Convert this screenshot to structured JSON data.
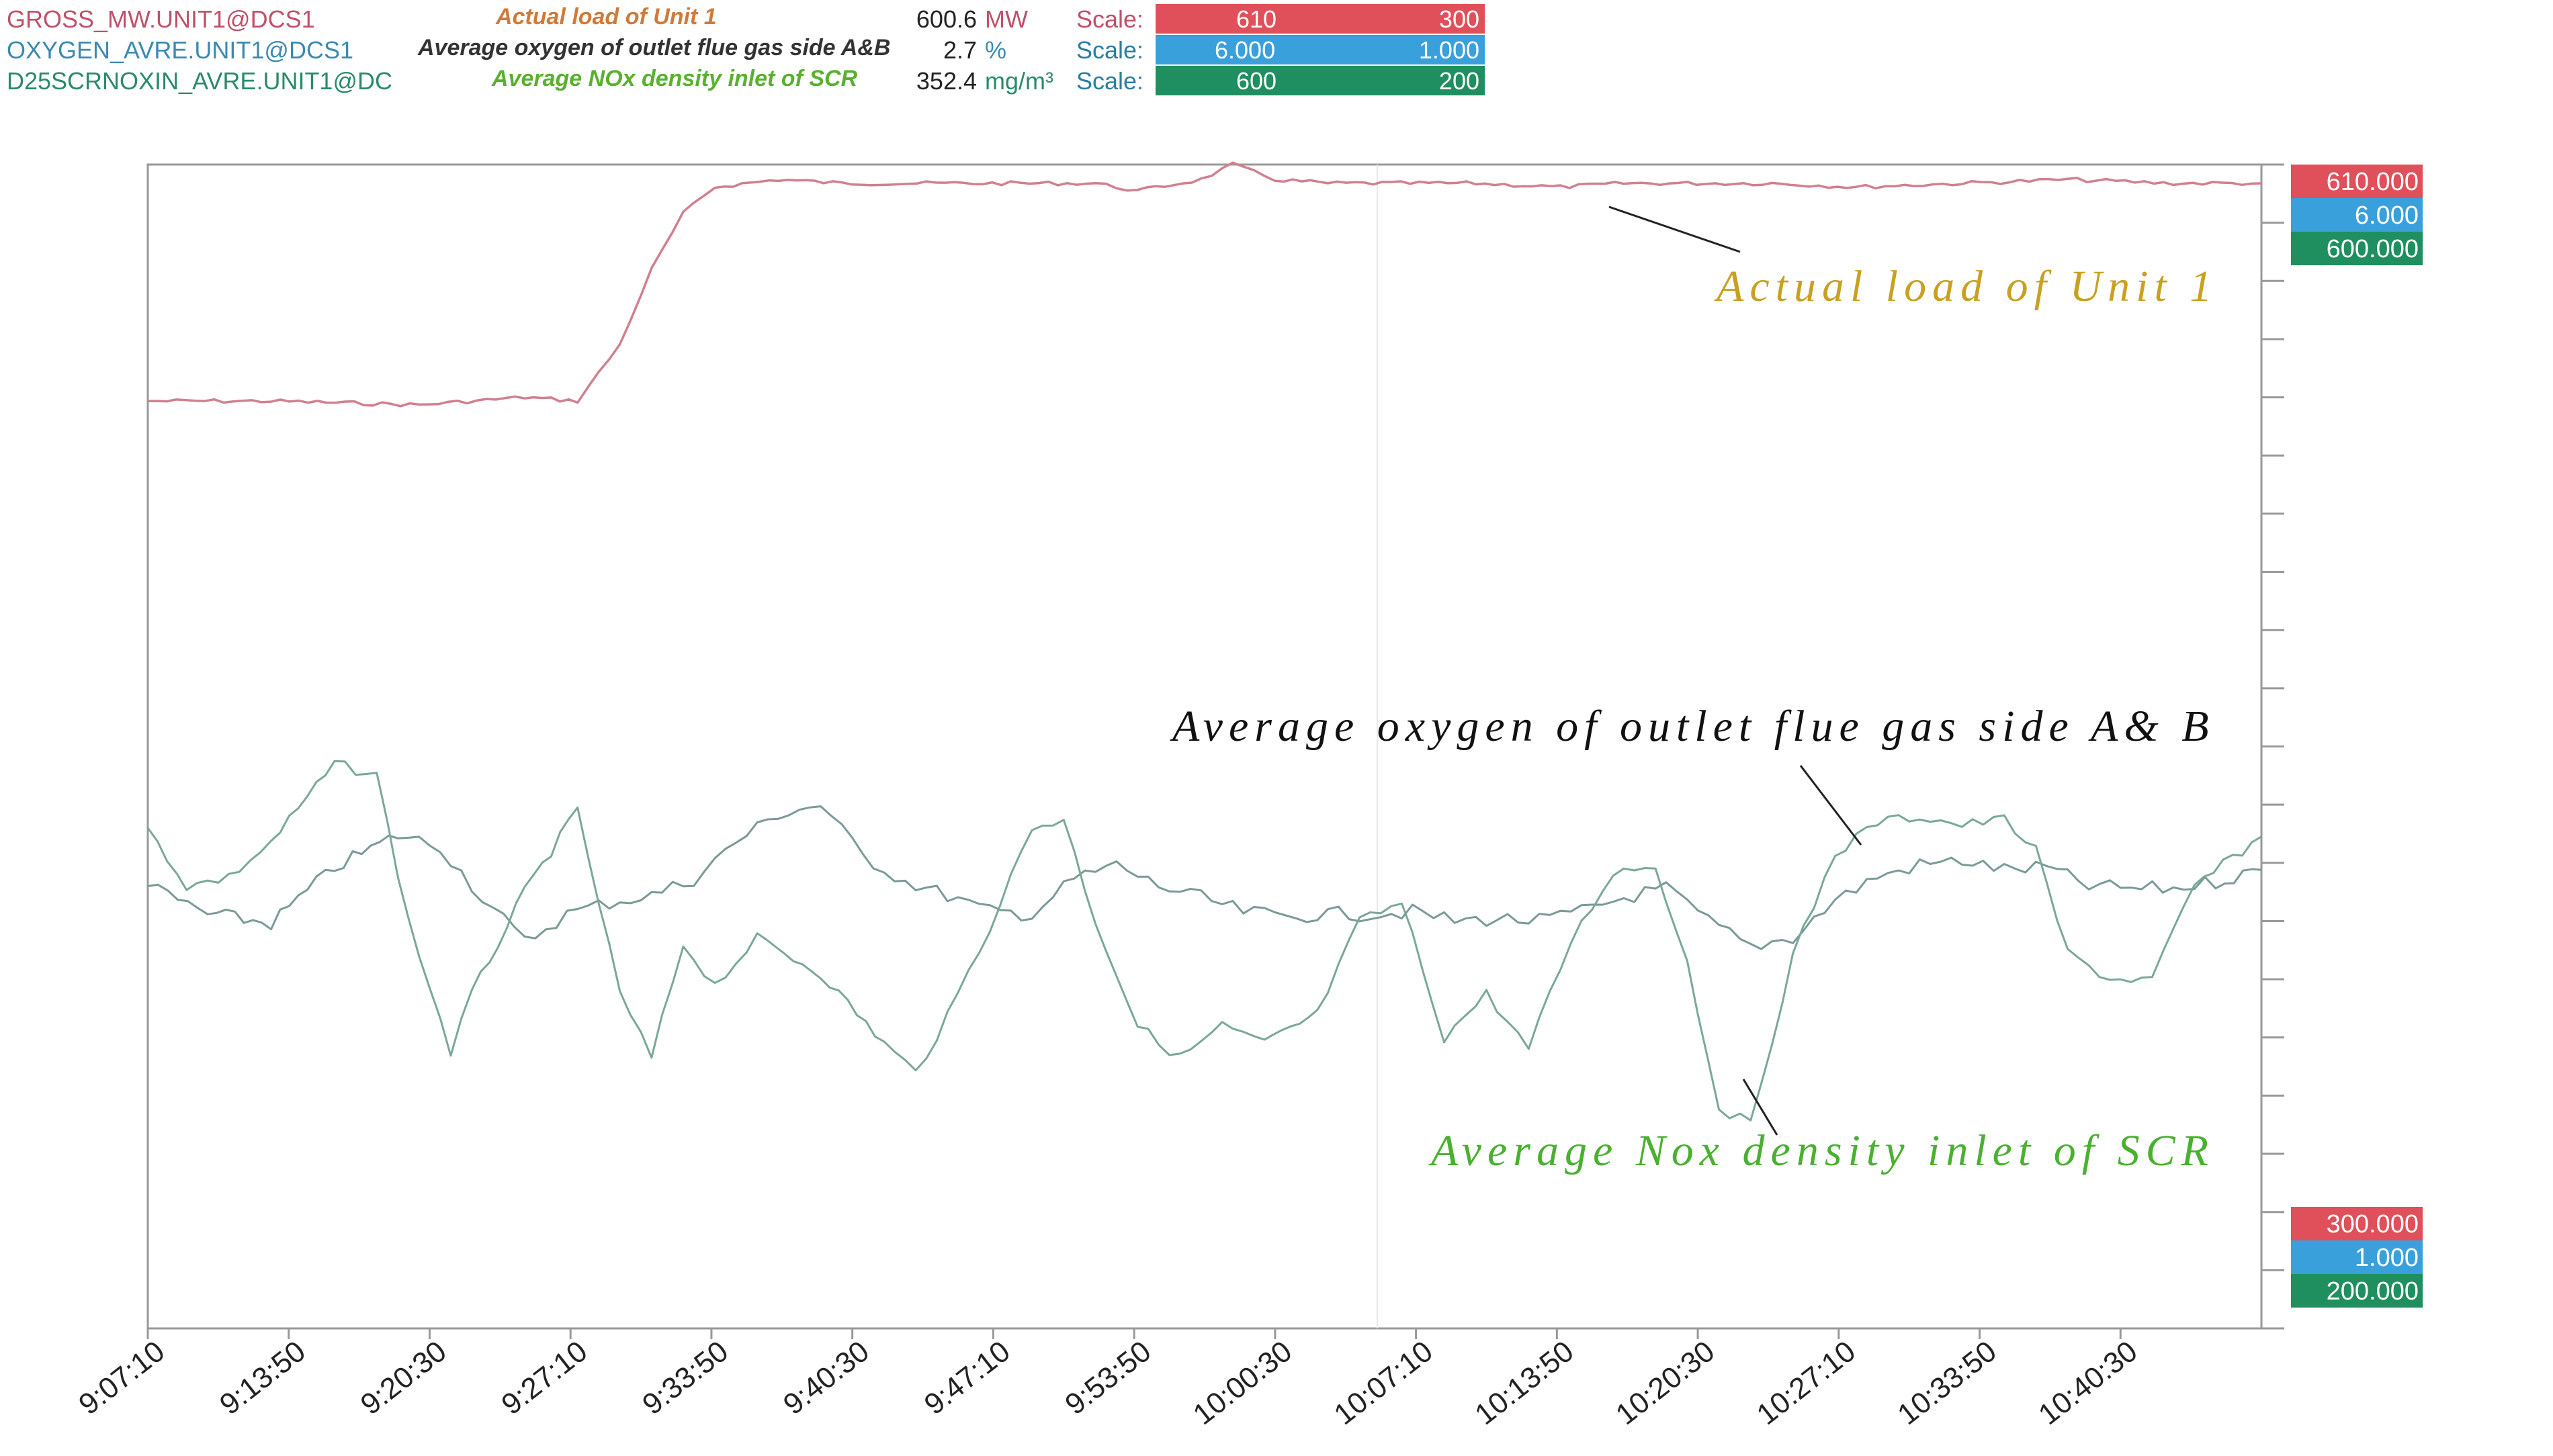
{
  "legend": [
    {
      "tag": "GROSS_MW.UNIT1@DCS1",
      "desc": "Actual load of Unit 1",
      "value": "600.6",
      "unit": "MW",
      "scale_label": "Scale:",
      "scale_max": "610",
      "scale_min": "300",
      "color": "#e0505a",
      "tag_color": "#c0506a",
      "desc_color": "#d07a3a"
    },
    {
      "tag": "OXYGEN_AVRE.UNIT1@DCS1",
      "desc": "Average oxygen of outlet flue gas side A&B",
      "value": "2.7",
      "unit": "%",
      "scale_label": "Scale:",
      "scale_max": "6.000",
      "scale_min": "1.000",
      "color": "#3aa0dc",
      "tag_color": "#3a8ab0",
      "desc_color": "#333333"
    },
    {
      "tag": "D25SCRNOXIN_AVRE.UNIT1@DC",
      "desc": "Average NOx density inlet of SCR",
      "value": "352.4",
      "unit": "mg/m³",
      "scale_label": "Scale:",
      "scale_max": "600",
      "scale_min": "200",
      "color": "#1f8f5f",
      "tag_color": "#2a8a6a",
      "desc_color": "#5ab030"
    }
  ],
  "chart_data": {
    "type": "line",
    "x_ticks": [
      "9:07:10",
      "9:13:50",
      "9:20:30",
      "9:27:10",
      "9:33:50",
      "9:40:30",
      "9:47:10",
      "9:53:50",
      "10:00:30",
      "10:07:10",
      "10:13:50",
      "10:20:30",
      "10:27:10",
      "10:33:50",
      "10:40:30"
    ],
    "x_range": [
      "9:07:10",
      "10:47:10"
    ],
    "grid": false,
    "right_scale_top": [
      "610.000",
      "6.000",
      "600.000"
    ],
    "right_scale_bottom": [
      "300.000",
      "1.000",
      "200.000"
    ],
    "series": [
      {
        "name": "Actual load of Unit 1",
        "ylim": [
          300,
          610
        ],
        "color": "#d08090",
        "x": [
          "9:07:10",
          "9:13:00",
          "9:20:00",
          "9:25:00",
          "9:27:30",
          "9:29:30",
          "9:31:00",
          "9:32:30",
          "9:34:00",
          "9:37:00",
          "9:40:00",
          "9:44:00",
          "9:48:00",
          "9:52:00",
          "9:54:00",
          "9:57:00",
          "9:58:30",
          "10:00:30",
          "10:03:00",
          "10:06:00",
          "10:10:00",
          "10:14:00",
          "10:17:00",
          "10:20:00",
          "10:24:00",
          "10:28:00",
          "10:33:00",
          "10:38:00",
          "10:43:00",
          "10:47:10"
        ],
        "values": [
          547,
          547,
          546,
          548,
          547,
          562,
          582,
          597,
          604,
          606,
          605,
          605,
          605,
          605,
          603,
          606,
          610,
          606,
          605,
          605,
          605,
          604,
          605,
          605,
          605,
          604,
          605,
          606,
          605,
          605
        ]
      },
      {
        "name": "Average oxygen of outlet flue gas side A&B",
        "ylim": [
          1.0,
          6.0
        ],
        "color": "#7a9a98",
        "x": [
          "9:07:10",
          "9:10:00",
          "9:13:00",
          "9:16:00",
          "9:19:00",
          "9:21:00",
          "9:23:00",
          "9:25:00",
          "9:27:00",
          "9:29:00",
          "9:31:00",
          "9:33:00",
          "9:35:00",
          "9:37:00",
          "9:39:00",
          "9:41:00",
          "9:43:00",
          "9:45:00",
          "9:47:00",
          "9:49:00",
          "9:51:00",
          "9:53:00",
          "9:55:00",
          "9:57:00",
          "9:59:00",
          "10:01:00",
          "10:03:00",
          "10:05:00",
          "10:07:00",
          "10:09:00",
          "10:11:00",
          "10:13:00",
          "10:15:00",
          "10:17:00",
          "10:19:00",
          "10:21:00",
          "10:23:00",
          "10:25:00",
          "10:27:00",
          "10:29:00",
          "10:31:00",
          "10:33:00",
          "10:35:00",
          "10:37:00",
          "10:39:00",
          "10:41:00",
          "10:43:00",
          "10:45:00",
          "10:47:10"
        ],
        "values": [
          2.9,
          2.78,
          2.74,
          2.98,
          3.12,
          3.07,
          2.85,
          2.66,
          2.78,
          2.83,
          2.86,
          2.93,
          3.09,
          3.21,
          3.25,
          3.03,
          2.92,
          2.86,
          2.79,
          2.78,
          2.93,
          2.99,
          2.9,
          2.85,
          2.79,
          2.77,
          2.78,
          2.78,
          2.79,
          2.75,
          2.76,
          2.75,
          2.79,
          2.85,
          2.89,
          2.75,
          2.64,
          2.68,
          2.84,
          2.94,
          2.99,
          3.01,
          2.97,
          2.98,
          2.9,
          2.89,
          2.89,
          2.92,
          2.97
        ]
      },
      {
        "name": "Average NOx density inlet of SCR",
        "ylim": [
          200,
          600
        ],
        "color": "#7aa898",
        "x": [
          "9:07:10",
          "9:09:00",
          "9:11:00",
          "9:13:00",
          "9:16:00",
          "9:18:00",
          "9:19:30",
          "9:21:30",
          "9:22:30",
          "9:25:00",
          "9:27:30",
          "9:29:30",
          "9:31:00",
          "9:32:30",
          "9:34:00",
          "9:36:00",
          "9:39:00",
          "9:42:00",
          "9:43:30",
          "9:45:00",
          "9:47:00",
          "9:49:00",
          "9:50:30",
          "9:52:00",
          "9:54:00",
          "9:56:00",
          "9:58:00",
          "10:00:00",
          "10:02:30",
          "10:04:30",
          "10:06:30",
          "10:08:30",
          "10:10:30",
          "10:12:30",
          "10:14:30",
          "10:16:30",
          "10:18:30",
          "10:20:00",
          "10:21:30",
          "10:23:00",
          "10:25:00",
          "10:27:00",
          "10:29:00",
          "10:31:00",
          "10:33:00",
          "10:35:00",
          "10:36:30",
          "10:38:00",
          "10:40:00",
          "10:42:00",
          "10:44:00",
          "10:47:10"
        ],
        "values": [
          372,
          352,
          355,
          367,
          394,
          390,
          340,
          295,
          315,
          350,
          378,
          315,
          293,
          332,
          318,
          334,
          322,
          298,
          288,
          307,
          338,
          372,
          375,
          340,
          304,
          293,
          304,
          298,
          308,
          340,
          346,
          300,
          315,
          296,
          333,
          357,
          359,
          326,
          276,
          270,
          328,
          363,
          374,
          376,
          373,
          375,
          364,
          329,
          320,
          320,
          352,
          369
        ]
      }
    ],
    "annotations": [
      {
        "text": "Actual load of Unit 1",
        "color": "#c9a020"
      },
      {
        "text": "Average oxygen of outlet flue gas side A& B",
        "color": "#111111"
      },
      {
        "text": "Average Nox density inlet of SCR",
        "color": "#4ab030"
      }
    ]
  }
}
